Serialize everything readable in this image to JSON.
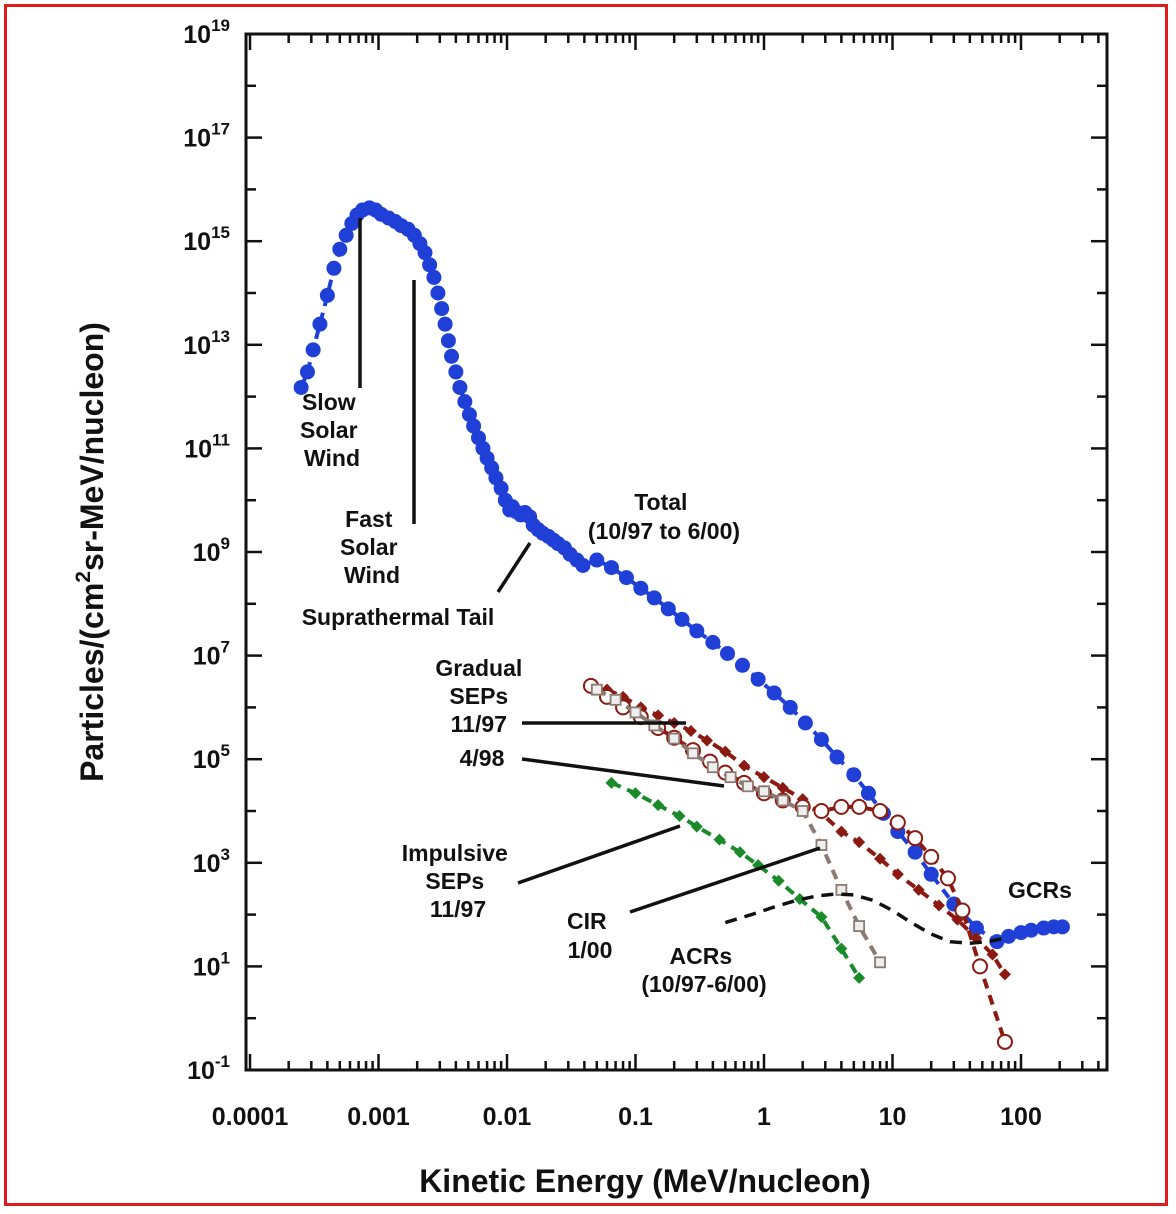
{
  "chart_data": {
    "type": "scatter",
    "title": "",
    "xlabel": "Kinetic Energy (MeV/nucleon)",
    "ylabel_parts": [
      "Particles/(cm",
      "2",
      "sr-MeV/nucleon)"
    ],
    "xscale": "log",
    "yscale": "log",
    "xlim": [
      0.0001,
      300
    ],
    "ylim": [
      0.1,
      1e+19
    ],
    "x_ticks": [
      {
        "value": 0.0001,
        "label": "0.0001"
      },
      {
        "value": 0.001,
        "label": "0.001"
      },
      {
        "value": 0.01,
        "label": "0.01"
      },
      {
        "value": 0.1,
        "label": "0.1"
      },
      {
        "value": 1,
        "label": "1"
      },
      {
        "value": 10,
        "label": "10"
      },
      {
        "value": 100,
        "label": "100"
      }
    ],
    "y_ticks": [
      {
        "exp": 19,
        "label": "10",
        "sup": "19"
      },
      {
        "exp": 17,
        "label": "10",
        "sup": "17"
      },
      {
        "exp": 15,
        "label": "10",
        "sup": "15"
      },
      {
        "exp": 13,
        "label": "10",
        "sup": "13"
      },
      {
        "exp": 11,
        "label": "10",
        "sup": "11"
      },
      {
        "exp": 9,
        "label": "10",
        "sup": "9"
      },
      {
        "exp": 7,
        "label": "10",
        "sup": "7"
      },
      {
        "exp": 5,
        "label": "10",
        "sup": "5"
      },
      {
        "exp": 3,
        "label": "10",
        "sup": "3"
      },
      {
        "exp": 1,
        "label": "10",
        "sup": "1"
      },
      {
        "exp": -1,
        "label": "10",
        "sup": "-1"
      }
    ],
    "series": [
      {
        "id": "total",
        "color": "#1f3fd6",
        "marker": "filled-circle",
        "line": "dashed",
        "points": [
          [
            0.00025,
            1500000000000.0
          ],
          [
            0.00028,
            3000000000000.0
          ],
          [
            0.00031,
            8000000000000.0
          ],
          [
            0.00035,
            25000000000000.0
          ],
          [
            0.0004,
            90000000000000.0
          ],
          [
            0.00045,
            300000000000000.0
          ],
          [
            0.0005,
            700000000000000.0
          ],
          [
            0.00056,
            1300000000000000.0
          ],
          [
            0.00062,
            2200000000000000.0
          ],
          [
            0.00068,
            3200000000000000.0
          ],
          [
            0.00075,
            4000000000000000.0
          ],
          [
            0.00085,
            4400000000000000.0
          ],
          [
            0.00095,
            4000000000000000.0
          ],
          [
            0.00105,
            3300000000000000.0
          ],
          [
            0.0012,
            2800000000000000.0
          ],
          [
            0.00135,
            2400000000000000.0
          ],
          [
            0.0015,
            2000000000000000.0
          ],
          [
            0.0017,
            1700000000000000.0
          ],
          [
            0.0019,
            1300000000000000.0
          ],
          [
            0.0021,
            900000000000000.0
          ],
          [
            0.0023,
            600000000000000.0
          ],
          [
            0.0025,
            350000000000000.0
          ],
          [
            0.0027,
            200000000000000.0
          ],
          [
            0.0029,
            100000000000000.0
          ],
          [
            0.0031,
            50000000000000.0
          ],
          [
            0.0033,
            25000000000000.0
          ],
          [
            0.0035,
            12000000000000.0
          ],
          [
            0.0037,
            6000000000000.0
          ],
          [
            0.004,
            3000000000000.0
          ],
          [
            0.0043,
            1500000000000.0
          ],
          [
            0.0047,
            800000000000.0
          ],
          [
            0.0051,
            450000000000.0
          ],
          [
            0.0055,
            270000000000.0
          ],
          [
            0.006,
            160000000000.0
          ],
          [
            0.0065,
            100000000000.0
          ],
          [
            0.007,
            65000000000.0
          ],
          [
            0.0076,
            42000000000.0
          ],
          [
            0.0082,
            27000000000.0
          ],
          [
            0.009,
            17000000000.0
          ],
          [
            0.0097,
            10000000000.0
          ],
          [
            0.0105,
            6500000000.0
          ],
          [
            0.011,
            7500000000.0
          ],
          [
            0.0118,
            6000000000.0
          ],
          [
            0.0128,
            5200000000.0
          ],
          [
            0.0138,
            5800000000.0
          ],
          [
            0.015,
            4800000000.0
          ],
          [
            0.016,
            3300000000.0
          ],
          [
            0.0175,
            2700000000.0
          ],
          [
            0.019,
            2300000000.0
          ],
          [
            0.021,
            2000000000.0
          ],
          [
            0.023,
            1700000000.0
          ],
          [
            0.025,
            1450000000.0
          ],
          [
            0.028,
            1200000000.0
          ],
          [
            0.031,
            900000000.0
          ],
          [
            0.035,
            700000000.0
          ],
          [
            0.039,
            550000000.0
          ],
          [
            0.05,
            700000000.0
          ],
          [
            0.065,
            500000000.0
          ],
          [
            0.085,
            320000000.0
          ],
          [
            0.11,
            200000000.0
          ],
          [
            0.14,
            130000000.0
          ],
          [
            0.18,
            80000000.0
          ],
          [
            0.23,
            50000000.0
          ],
          [
            0.3,
            30000000.0
          ],
          [
            0.4,
            18000000.0
          ],
          [
            0.52,
            11000000.0
          ],
          [
            0.68,
            6500000.0
          ],
          [
            0.9,
            3500000.0
          ],
          [
            1.2,
            1900000.0
          ],
          [
            1.6,
            1000000.0
          ],
          [
            2.1,
            500000.0
          ],
          [
            2.8,
            240000.0
          ],
          [
            3.7,
            110000.0
          ],
          [
            5,
            50000.0
          ],
          [
            6.5,
            22000.0
          ],
          [
            8.5,
            9000.0
          ],
          [
            11,
            4000.0
          ],
          [
            15,
            1600.0
          ],
          [
            20,
            600.0
          ],
          [
            30,
            160.0
          ],
          [
            45,
            55.0
          ],
          [
            65,
            30.0
          ],
          [
            80,
            38.0
          ],
          [
            100,
            45.0
          ],
          [
            120,
            50.0
          ],
          [
            150,
            55.0
          ],
          [
            180,
            58.0
          ],
          [
            210,
            58.0
          ]
        ]
      },
      {
        "id": "gradual-11-97",
        "color": "#8b1a12",
        "marker": "filled-diamond",
        "line": "dashed",
        "points": [
          [
            0.045,
            2600000.0
          ],
          [
            0.06,
            2200000.0
          ],
          [
            0.08,
            1600000.0
          ],
          [
            0.11,
            1000000.0
          ],
          [
            0.15,
            700000.0
          ],
          [
            0.2,
            500000.0
          ],
          [
            0.27,
            350000.0
          ],
          [
            0.36,
            230000.0
          ],
          [
            0.5,
            140000.0
          ],
          [
            0.7,
            75000.0
          ],
          [
            1,
            45000.0
          ],
          [
            1.4,
            28000.0
          ],
          [
            2,
            17000.0
          ],
          [
            2.8,
            9000.0
          ],
          [
            4,
            4000.0
          ],
          [
            5.5,
            2500.0
          ],
          [
            8,
            1200.0
          ],
          [
            11,
            600.0
          ],
          [
            16,
            300.0
          ],
          [
            23,
            150.0
          ],
          [
            32,
            80.0
          ],
          [
            45,
            35.0
          ],
          [
            60,
            17.0
          ],
          [
            75,
            7
          ]
        ]
      },
      {
        "id": "gradual-4-98",
        "color": "#8b1a12",
        "marker": "open-circle",
        "line": "dashed",
        "points": [
          [
            0.045,
            2600000.0
          ],
          [
            0.06,
            1600000.0
          ],
          [
            0.08,
            1000000.0
          ],
          [
            0.11,
            650000.0
          ],
          [
            0.15,
            400000.0
          ],
          [
            0.2,
            260000.0
          ],
          [
            0.28,
            150000.0
          ],
          [
            0.38,
            90000.0
          ],
          [
            0.5,
            55000.0
          ],
          [
            0.7,
            35000.0
          ],
          [
            1,
            22000.0
          ],
          [
            1.4,
            16000.0
          ],
          [
            2,
            12000.0
          ],
          [
            2.8,
            10000.0
          ],
          [
            4,
            12000.0
          ],
          [
            5.5,
            12000.0
          ],
          [
            8,
            10000.0
          ],
          [
            11,
            6000.0
          ],
          [
            15,
            3000.0
          ],
          [
            20,
            1300.0
          ],
          [
            27,
            500.0
          ],
          [
            35,
            120.0
          ],
          [
            48,
            10.0
          ],
          [
            75,
            0.35
          ]
        ]
      },
      {
        "id": "impulsive-11-97",
        "color": "#1a8a2a",
        "marker": "filled-diamond",
        "line": "dashed",
        "points": [
          [
            0.065,
            35000.0
          ],
          [
            0.1,
            22000.0
          ],
          [
            0.15,
            13000.0
          ],
          [
            0.22,
            8000.0
          ],
          [
            0.3,
            5000.0
          ],
          [
            0.45,
            2800.0
          ],
          [
            0.65,
            1600.0
          ],
          [
            0.9,
            900.0
          ],
          [
            1.3,
            450.0
          ],
          [
            1.9,
            200.0
          ],
          [
            2.8,
            90.0
          ],
          [
            4,
            22.0
          ],
          [
            5.5,
            6
          ]
        ]
      },
      {
        "id": "cir-1-00",
        "color": "#8a7a72",
        "marker": "open-square",
        "line": "dashed",
        "points": [
          [
            0.05,
            2200000.0
          ],
          [
            0.07,
            1400000.0
          ],
          [
            0.1,
            800000.0
          ],
          [
            0.14,
            450000.0
          ],
          [
            0.2,
            250000.0
          ],
          [
            0.28,
            130000.0
          ],
          [
            0.4,
            70000.0
          ],
          [
            0.55,
            45000.0
          ],
          [
            0.75,
            30000.0
          ],
          [
            1,
            24000.0
          ],
          [
            1.4,
            16000.0
          ],
          [
            2,
            10000.0
          ],
          [
            2.8,
            2200.0
          ],
          [
            4,
            300.0
          ],
          [
            5.5,
            60.0
          ],
          [
            8,
            12.0
          ]
        ]
      },
      {
        "id": "acrs",
        "color": "#111111",
        "marker": "none",
        "line": "dashed",
        "points": [
          [
            0.5,
            70.0
          ],
          [
            0.8,
            100.0
          ],
          [
            1.2,
            140.0
          ],
          [
            1.8,
            190.0
          ],
          [
            2.6,
            230.0
          ],
          [
            3.6,
            250.0
          ],
          [
            5,
            240.0
          ],
          [
            7,
            190.0
          ],
          [
            10,
            120.0
          ],
          [
            14,
            70.0
          ],
          [
            20,
            42.0
          ],
          [
            28,
            30.0
          ],
          [
            40,
            28.0
          ],
          [
            55,
            30.0
          ],
          [
            75,
            35.0
          ]
        ]
      }
    ],
    "annotations": [
      {
        "id": "slow-solar-wind",
        "lines": [
          "Slow",
          "Solar",
          "Wind"
        ]
      },
      {
        "id": "fast-solar-wind",
        "lines": [
          "Fast",
          "Solar",
          "Wind"
        ]
      },
      {
        "id": "suprathermal-tail",
        "lines": [
          "Suprathermal Tail"
        ]
      },
      {
        "id": "total",
        "lines": [
          "Total",
          "(10/97 to 6/00)"
        ]
      },
      {
        "id": "gradual-seps",
        "lines": [
          "Gradual",
          "SEPs",
          "11/97",
          "4/98"
        ]
      },
      {
        "id": "impulsive-seps",
        "lines": [
          "Impulsive",
          "SEPs",
          "11/97"
        ]
      },
      {
        "id": "cir",
        "lines": [
          "CIR",
          "1/00"
        ]
      },
      {
        "id": "acrs",
        "lines": [
          "ACRs",
          "(10/97-6/00)"
        ]
      },
      {
        "id": "gcrs",
        "lines": [
          "GCRs"
        ]
      }
    ]
  }
}
